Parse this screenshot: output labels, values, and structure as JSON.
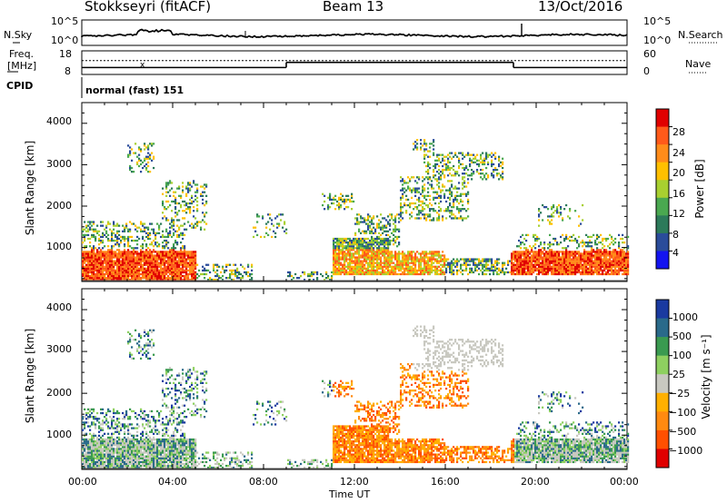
{
  "header": {
    "station": "Stokkseyri (fitACF)",
    "beam": "Beam 13",
    "date": "13/Oct/2016"
  },
  "noise_panel": {
    "left_label": "N.Sky",
    "right_label": "N.Search",
    "left_ticks": [
      "10^5",
      "10^0"
    ],
    "right_ticks": [
      "10^5",
      "10^0"
    ]
  },
  "freq_panel": {
    "left_label_line1": "Freq.",
    "left_label_line2": "[MHz]",
    "left_ticks": [
      "18",
      "8"
    ],
    "right_label": "Nave",
    "right_ticks": [
      "60",
      "0"
    ]
  },
  "cpid_panel": {
    "label": "CPID",
    "mode": "normal (fast) 151"
  },
  "power_panel": {
    "ylabel": "Slant Range [km]",
    "yticks": [
      "4000",
      "3000",
      "2000",
      "1000"
    ],
    "colorbar_label": "Power [dB]",
    "colorbar_ticks": [
      "28",
      "24",
      "20",
      "16",
      "12",
      "8",
      "4"
    ],
    "colorbar_colors": [
      "#e00000",
      "#ff5a1a",
      "#ff8c1a",
      "#ffc000",
      "#a8d030",
      "#4aa850",
      "#2c7a5a",
      "#2a4c9a",
      "#1414f0"
    ]
  },
  "velocity_panel": {
    "ylabel": "Slant Range [km]",
    "yticks": [
      "4000",
      "3000",
      "2000",
      "1000"
    ],
    "colorbar_label": "Velocity [m s⁻¹]",
    "colorbar_ticks": [
      "1000",
      "500",
      "100",
      "25",
      "−25",
      "−100",
      "−500",
      "−1000"
    ],
    "colorbar_colors": [
      "#1a3aa0",
      "#2a6a8a",
      "#3a9a50",
      "#8ed060",
      "#c8c8c0",
      "#ffb000",
      "#ff8a10",
      "#ff5000",
      "#e00000"
    ]
  },
  "xaxis": {
    "ticks": [
      "00:00",
      "04:00",
      "08:00",
      "12:00",
      "16:00",
      "20:00",
      "00:00"
    ],
    "label": "Time UT"
  },
  "chart_data": {
    "type": "heatmap",
    "x_range_hours": [
      0,
      24
    ],
    "y_range_km": [
      180,
      4500
    ],
    "frequency_mhz": [
      {
        "x": [
          0,
          9
        ],
        "y": 10.2
      },
      {
        "x": [
          9,
          19
        ],
        "y": 12.9
      },
      {
        "x": [
          19,
          24
        ],
        "y": 10.2
      }
    ],
    "nave_level": 35
  }
}
